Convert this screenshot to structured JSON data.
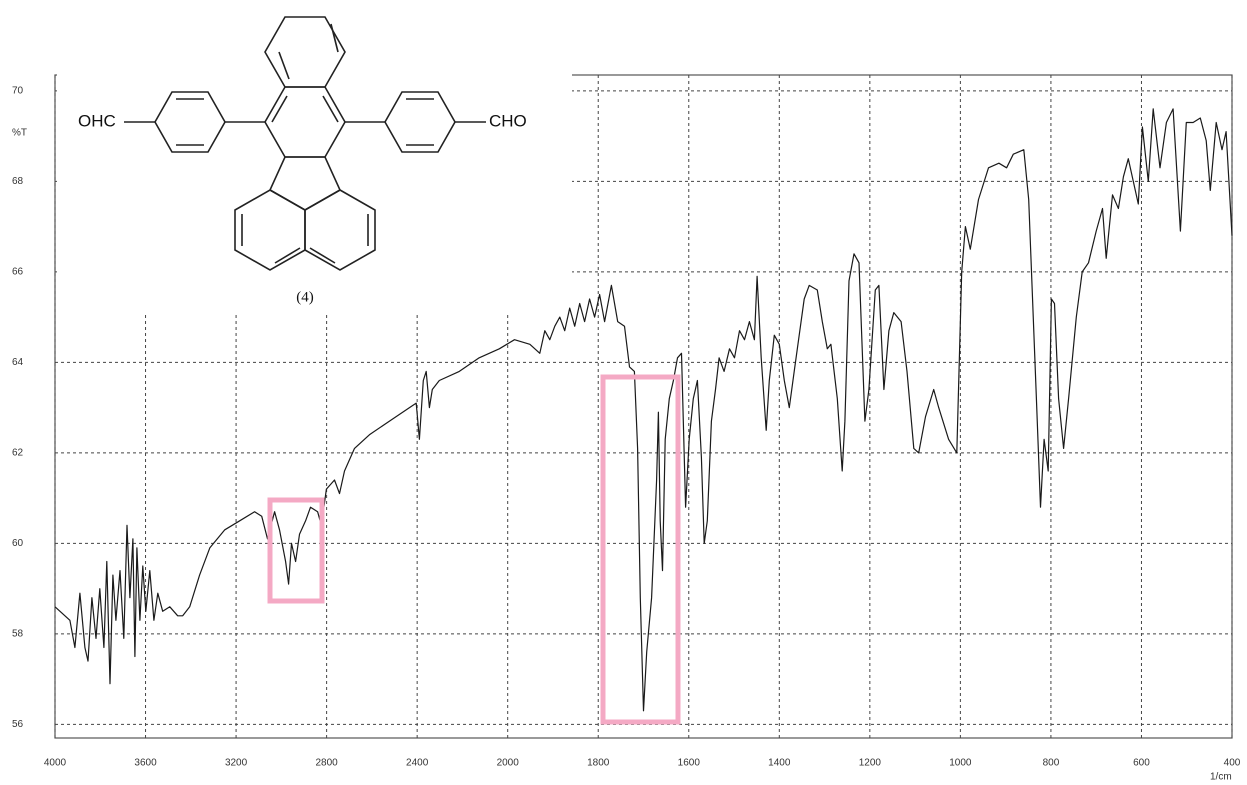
{
  "chart_data": {
    "type": "line",
    "y_label": "%T",
    "x_label": "1/cm",
    "annotations": {
      "compound_label": "(4)",
      "left_group": "OHC",
      "right_group": "CHO"
    },
    "color": "#1a1a1a",
    "grid": true,
    "xlim": [
      4000,
      400
    ],
    "ylim": [
      55.7,
      70.35
    ],
    "xticks": [
      4000,
      3600,
      3200,
      2800,
      2400,
      2000,
      1800,
      1600,
      1400,
      1200,
      1000,
      800,
      600,
      400
    ],
    "yticks": [
      56,
      58,
      60,
      62,
      64,
      66,
      68,
      70
    ],
    "x": [
      4000,
      3978,
      3934,
      3912,
      3890,
      3868,
      3854,
      3837,
      3819,
      3802,
      3784,
      3771,
      3757,
      3744,
      3731,
      3713,
      3696,
      3682,
      3669,
      3656,
      3647,
      3638,
      3625,
      3612,
      3599,
      3581,
      3563,
      3546,
      3524,
      3493,
      3458,
      3436,
      3405,
      3361,
      3316,
      3250,
      3184,
      3118,
      3087,
      3061,
      3030,
      3008,
      2981,
      2968,
      2955,
      2937,
      2920,
      2893,
      2871,
      2840,
      2823,
      2801,
      2765,
      2743,
      2721,
      2677,
      2611,
      2523,
      2434,
      2404,
      2390,
      2373,
      2360,
      2346,
      2333,
      2302,
      2214,
      2126,
      2037,
      1985,
      1951,
      1929,
      1918,
      1907,
      1896,
      1885,
      1874,
      1863,
      1852,
      1841,
      1830,
      1819,
      1808,
      1797,
      1786,
      1771,
      1757,
      1742,
      1731,
      1720,
      1713,
      1707,
      1700,
      1693,
      1682,
      1671,
      1667,
      1663,
      1658,
      1652,
      1643,
      1634,
      1625,
      1616,
      1607,
      1599,
      1590,
      1581,
      1572,
      1566,
      1559,
      1550,
      1541,
      1533,
      1522,
      1510,
      1499,
      1488,
      1477,
      1466,
      1455,
      1449,
      1440,
      1429,
      1422,
      1411,
      1400,
      1389,
      1378,
      1367,
      1356,
      1345,
      1334,
      1316,
      1305,
      1294,
      1286,
      1272,
      1261,
      1255,
      1246,
      1235,
      1224,
      1211,
      1202,
      1188,
      1180,
      1169,
      1158,
      1147,
      1131,
      1118,
      1103,
      1092,
      1077,
      1059,
      1048,
      1026,
      1008,
      997,
      989,
      978,
      960,
      938,
      915,
      898,
      883,
      860,
      849,
      832,
      823,
      815,
      806,
      799,
      792,
      783,
      772,
      761,
      744,
      731,
      717,
      700,
      686,
      678,
      664,
      651,
      640,
      629,
      618,
      607,
      598,
      585,
      574,
      559,
      545,
      530,
      514,
      501,
      486,
      470,
      457,
      448,
      435,
      422,
      413,
      400
    ],
    "values": [
      58.6,
      58.5,
      58.3,
      57.7,
      58.9,
      57.7,
      57.4,
      58.8,
      57.9,
      59.0,
      57.7,
      59.6,
      56.9,
      59.3,
      58.3,
      59.4,
      57.9,
      60.4,
      58.8,
      60.1,
      57.5,
      59.9,
      58.3,
      59.5,
      58.5,
      59.4,
      58.3,
      58.9,
      58.5,
      58.6,
      58.4,
      58.4,
      58.6,
      59.3,
      59.9,
      60.3,
      60.5,
      60.7,
      60.6,
      60.1,
      60.7,
      60.3,
      59.6,
      59.1,
      60.0,
      59.6,
      60.2,
      60.5,
      60.8,
      60.7,
      60.4,
      61.2,
      61.4,
      61.1,
      61.6,
      62.1,
      62.4,
      62.7,
      63.0,
      63.1,
      62.3,
      63.6,
      63.8,
      63.0,
      63.4,
      63.6,
      63.8,
      64.1,
      64.3,
      64.5,
      64.4,
      64.2,
      64.7,
      64.5,
      64.8,
      65.0,
      64.7,
      65.2,
      64.8,
      65.3,
      64.9,
      65.4,
      65.0,
      65.5,
      64.9,
      65.7,
      64.9,
      64.8,
      63.9,
      63.8,
      62.1,
      58.8,
      56.3,
      57.6,
      58.8,
      61.4,
      62.9,
      60.5,
      59.4,
      62.3,
      63.2,
      63.6,
      64.1,
      64.2,
      60.8,
      62.3,
      63.2,
      63.6,
      61.9,
      60.0,
      60.5,
      62.7,
      63.4,
      64.1,
      63.8,
      64.3,
      64.1,
      64.7,
      64.5,
      64.9,
      64.5,
      65.9,
      64.1,
      62.5,
      63.6,
      64.6,
      64.4,
      63.6,
      63.0,
      63.8,
      64.6,
      65.4,
      65.7,
      65.6,
      64.9,
      64.3,
      64.4,
      63.2,
      61.6,
      62.7,
      65.8,
      66.4,
      66.2,
      62.7,
      63.4,
      65.6,
      65.7,
      63.4,
      64.7,
      65.1,
      64.9,
      63.8,
      62.1,
      62.0,
      62.8,
      63.4,
      63.0,
      62.3,
      62.0,
      66.0,
      67.0,
      66.5,
      67.6,
      68.3,
      68.4,
      68.3,
      68.6,
      68.7,
      67.6,
      63.2,
      60.8,
      62.3,
      61.6,
      65.4,
      65.3,
      63.2,
      62.1,
      63.2,
      65.0,
      66.0,
      66.2,
      66.9,
      67.4,
      66.3,
      67.7,
      67.4,
      68.1,
      68.5,
      68.0,
      67.5,
      69.2,
      68.0,
      69.6,
      68.3,
      69.3,
      69.6,
      66.9,
      69.3,
      69.3,
      69.4,
      68.9,
      67.8,
      69.3,
      68.7,
      69.1,
      66.8
    ]
  }
}
